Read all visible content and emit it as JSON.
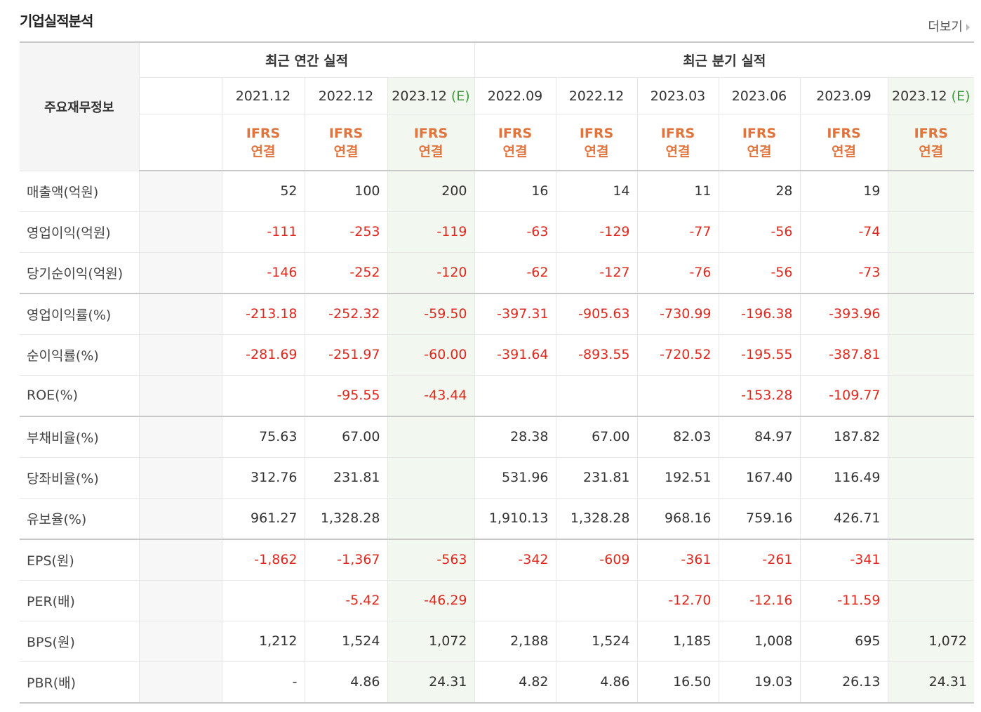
{
  "header": {
    "title": "기업실적분석",
    "more": "더보기"
  },
  "table": {
    "head_label": "주요재무정보",
    "groups": [
      {
        "label": "최근 연간 실적",
        "columns": [
          {
            "period": "2021.12",
            "basis": "IFRS",
            "scope": "연결"
          },
          {
            "period": "2022.12",
            "basis": "IFRS",
            "scope": "연결"
          },
          {
            "period": "2023.12",
            "tag": "(E)",
            "basis": "IFRS",
            "scope": "연결"
          }
        ]
      },
      {
        "label": "최근 분기 실적",
        "columns": [
          {
            "period": "2022.09",
            "basis": "IFRS",
            "scope": "연결"
          },
          {
            "period": "2022.12",
            "basis": "IFRS",
            "scope": "연결"
          },
          {
            "period": "2023.03",
            "basis": "IFRS",
            "scope": "연결"
          },
          {
            "period": "2023.06",
            "basis": "IFRS",
            "scope": "연결"
          },
          {
            "period": "2023.09",
            "basis": "IFRS",
            "scope": "연결"
          },
          {
            "period": "2023.12",
            "tag": "(E)",
            "basis": "IFRS",
            "scope": "연결"
          }
        ]
      }
    ],
    "sections": [
      {
        "rows": [
          {
            "label": "매출액(억원)",
            "values": [
              "52",
              "100",
              "200",
              "16",
              "14",
              "11",
              "28",
              "19",
              null
            ]
          },
          {
            "label": "영업이익(억원)",
            "values": [
              "-111",
              "-253",
              "-119",
              "-63",
              "-129",
              "-77",
              "-56",
              "-74",
              null
            ]
          },
          {
            "label": "당기순이익(억원)",
            "values": [
              "-146",
              "-252",
              "-120",
              "-62",
              "-127",
              "-76",
              "-56",
              "-73",
              null
            ]
          }
        ]
      },
      {
        "rows": [
          {
            "label": "영업이익률(%)",
            "values": [
              "-213.18",
              "-252.32",
              "-59.50",
              "-397.31",
              "-905.63",
              "-730.99",
              "-196.38",
              "-393.96",
              null
            ]
          },
          {
            "label": "순이익률(%)",
            "values": [
              "-281.69",
              "-251.97",
              "-60.00",
              "-391.64",
              "-893.55",
              "-720.52",
              "-195.55",
              "-387.81",
              null
            ]
          },
          {
            "label": "ROE(%)",
            "values": [
              null,
              "-95.55",
              "-43.44",
              null,
              null,
              null,
              "-153.28",
              "-109.77",
              null
            ]
          }
        ]
      },
      {
        "rows": [
          {
            "label": "부채비율(%)",
            "values": [
              "75.63",
              "67.00",
              null,
              "28.38",
              "67.00",
              "82.03",
              "84.97",
              "187.82",
              null
            ]
          },
          {
            "label": "당좌비율(%)",
            "values": [
              "312.76",
              "231.81",
              null,
              "531.96",
              "231.81",
              "192.51",
              "167.40",
              "116.49",
              null
            ]
          },
          {
            "label": "유보율(%)",
            "values": [
              "961.27",
              "1,328.28",
              null,
              "1,910.13",
              "1,328.28",
              "968.16",
              "759.16",
              "426.71",
              null
            ]
          }
        ]
      },
      {
        "rows": [
          {
            "label": "EPS(원)",
            "values": [
              "-1,862",
              "-1,367",
              "-563",
              "-342",
              "-609",
              "-361",
              "-261",
              "-341",
              null
            ]
          },
          {
            "label": "PER(배)",
            "values": [
              null,
              "-5.42",
              "-46.29",
              null,
              null,
              "-12.70",
              "-12.16",
              "-11.59",
              null
            ]
          },
          {
            "label": "BPS(원)",
            "values": [
              "1,212",
              "1,524",
              "1,072",
              "2,188",
              "1,524",
              "1,185",
              "1,008",
              "695",
              "1,072"
            ]
          },
          {
            "label": "PBR(배)",
            "values": [
              "-",
              "4.86",
              "24.31",
              "4.82",
              "4.86",
              "16.50",
              "19.03",
              "26.13",
              "24.31"
            ]
          }
        ]
      }
    ]
  }
}
